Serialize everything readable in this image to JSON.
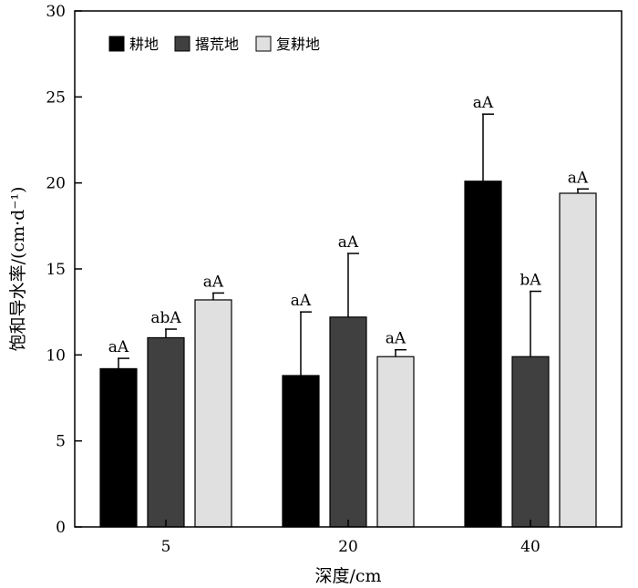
{
  "chart_data": {
    "type": "bar",
    "title": "",
    "xlabel": "深度/cm",
    "ylabel": "饱和导水率/(cm·d⁻¹)",
    "ylim": [
      0,
      30
    ],
    "yticks": [
      0,
      5,
      10,
      15,
      20,
      25,
      30
    ],
    "categories": [
      "5",
      "20",
      "40"
    ],
    "legend_position": "top-left",
    "grid": false,
    "series": [
      {
        "name": "耕地",
        "color": "#000000",
        "values": [
          9.2,
          8.8,
          20.1
        ],
        "errors": [
          0.6,
          3.7,
          3.9
        ],
        "labels": [
          "aA",
          "aA",
          "aA"
        ]
      },
      {
        "name": "撂荒地",
        "color": "#404040",
        "values": [
          11.0,
          12.2,
          9.9
        ],
        "errors": [
          0.5,
          3.7,
          3.8
        ],
        "labels": [
          "abA",
          "aA",
          "bA"
        ]
      },
      {
        "name": "复耕地",
        "color": "#e0e0e0",
        "values": [
          13.2,
          9.9,
          19.4
        ],
        "errors": [
          0.4,
          0.4,
          0.25
        ],
        "labels": [
          "aA",
          "aA",
          "aA"
        ]
      }
    ]
  }
}
